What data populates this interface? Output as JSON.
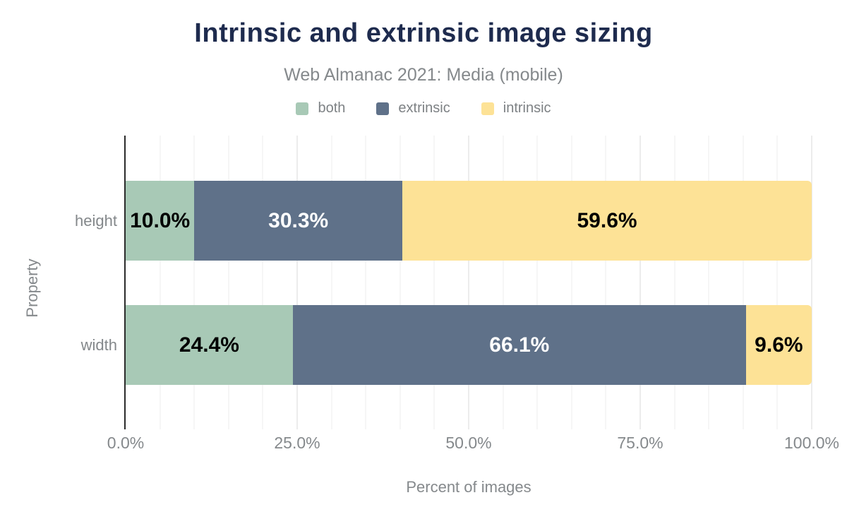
{
  "chart_data": {
    "type": "bar",
    "orientation": "horizontal",
    "stacked": true,
    "title": "Intrinsic and extrinsic image sizing",
    "subtitle": "Web Almanac 2021: Media (mobile)",
    "categories": [
      "height",
      "width"
    ],
    "series": [
      {
        "name": "both",
        "color": "#a8c9b6",
        "label_color": "#000000",
        "values": [
          10.0,
          24.4
        ],
        "labels": [
          "10.0%",
          "24.4%"
        ]
      },
      {
        "name": "extrinsic",
        "color": "#5f7189",
        "label_color": "#ffffff",
        "values": [
          30.3,
          66.1
        ],
        "labels": [
          "30.3%",
          "66.1%"
        ]
      },
      {
        "name": "intrinsic",
        "color": "#fde296",
        "label_color": "#000000",
        "values": [
          59.6,
          9.6
        ],
        "labels": [
          "59.6%",
          "9.6%"
        ]
      }
    ],
    "xlabel": "Percent of images",
    "ylabel": "Property",
    "xlim": [
      0,
      100
    ],
    "x_ticks": [
      {
        "value": 0,
        "label": "0.0%"
      },
      {
        "value": 25,
        "label": "25.0%"
      },
      {
        "value": 50,
        "label": "50.0%"
      },
      {
        "value": 75,
        "label": "75.0%"
      },
      {
        "value": 100,
        "label": "100.0%"
      }
    ],
    "grid": {
      "minor_step": 5,
      "major_step": 25,
      "show": true
    },
    "legend_position": "top",
    "colors": {
      "title_text": "#1e2b4e",
      "muted_text": "#85898c",
      "axis_line": "#2b2b2b",
      "gridline_minor": "#f6f6f6",
      "gridline_major": "#ececec",
      "background": "#ffffff"
    }
  }
}
